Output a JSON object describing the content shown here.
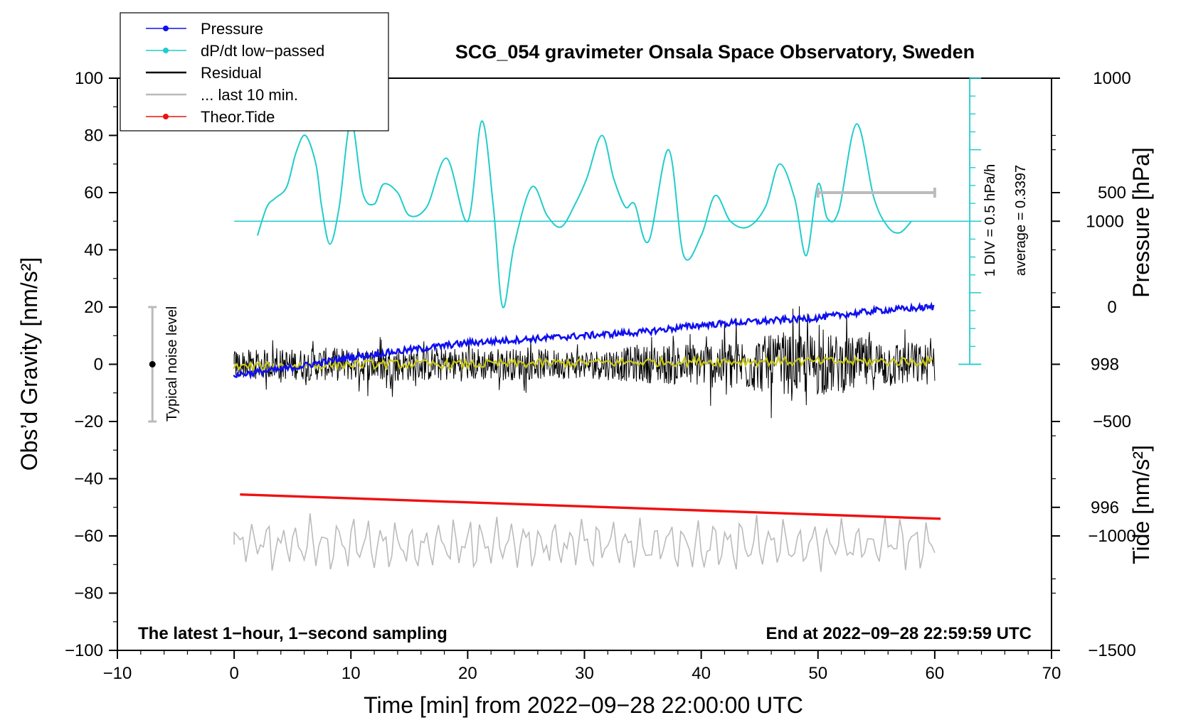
{
  "chart_data": {
    "type": "line",
    "title": "SCG_054 gravimeter Onsala Space Observatory, Sweden",
    "xlabel": "Time [min] from 2022−09−28 22:00:00 UTC",
    "ylabel_left": "Obs’d Gravity [nm/s²]",
    "ylabel_pressure": "Pressure [hPa]",
    "ylabel_tide": "Tide [nm/s²]",
    "xlim": [
      -10,
      70
    ],
    "ylim": [
      -100,
      100
    ],
    "pressure_ylim": [
      994,
      1002
    ],
    "tide_ylim": [
      -1500,
      1000
    ],
    "x_ticks": [
      "−10",
      "0",
      "10",
      "20",
      "30",
      "40",
      "50",
      "60",
      "70"
    ],
    "y_ticks": [
      "−100",
      "−80",
      "−60",
      "−40",
      "−20",
      "0",
      "20",
      "40",
      "60",
      "80",
      "100"
    ],
    "pressure_ticks": [
      "996",
      "998",
      "1000"
    ],
    "tide_ticks": [
      "−1500",
      "−1000",
      "−500",
      "0",
      "500",
      "1000"
    ],
    "legend": {
      "position": "top-left",
      "entries": [
        {
          "label": "Pressure",
          "color": "#1010ee",
          "marker": "dot"
        },
        {
          "label": "dP/dt low−passed",
          "color": "#22cccc",
          "marker": "dot"
        },
        {
          "label": "Residual",
          "color": "#000000",
          "marker": "line"
        },
        {
          "label": "... last 10 min.",
          "color": "#bbbbbb",
          "marker": "line"
        },
        {
          "label": "Theor.Tide",
          "color": "#ee1111",
          "marker": "dot"
        }
      ]
    },
    "annotations": {
      "bottom_left": "The latest 1−hour, 1−second sampling",
      "bottom_right": "End at 2022−09−28 22:59:59 UTC",
      "noise_label": "Typical noise level",
      "div_label": "1 DIV = 0.5 hPa/h",
      "average_label": "average = 0.3397"
    },
    "noise_bar": {
      "x": -7,
      "y": 0,
      "ymin": -20,
      "ymax": 20
    },
    "last10_bar": {
      "x_start": 50,
      "x_end": 60,
      "tide_value": 500
    },
    "dpdt_baseline_g": 50,
    "series": [
      {
        "name": "Pressure",
        "axis": "pressure",
        "color": "#1010ee",
        "x": [
          0,
          5,
          10,
          15,
          20,
          25,
          30,
          35,
          40,
          45,
          50,
          55,
          60
        ],
        "y": [
          997.85,
          997.95,
          998.1,
          998.2,
          998.3,
          998.35,
          998.4,
          998.45,
          998.55,
          998.6,
          998.65,
          998.75,
          998.8
        ]
      },
      {
        "name": "dP/dt low-passed",
        "axis": "left",
        "color": "#22cccc",
        "x": [
          2,
          2.8,
          3.5,
          4.5,
          5.3,
          6.1,
          7,
          7.5,
          8.2,
          9,
          10,
          11,
          12,
          12.8,
          14,
          15,
          16.5,
          18.2,
          20,
          21.2,
          22.2,
          23,
          24,
          25.5,
          26.8,
          28,
          29.2,
          30.2,
          31.5,
          32.5,
          33.5,
          34.3,
          35.5,
          37.2,
          38.5,
          40,
          41.2,
          42.5,
          44,
          45.5,
          46.7,
          48,
          49,
          50,
          50.8,
          51.8,
          53.3,
          54.8,
          56,
          57,
          58
        ],
        "y": [
          45,
          55,
          58,
          62,
          74,
          80,
          70,
          55,
          42,
          55,
          85,
          60,
          56,
          63,
          60,
          52,
          55,
          72,
          50,
          85,
          55,
          20,
          42,
          62,
          52,
          48,
          56,
          65,
          80,
          65,
          55,
          56,
          43,
          75,
          38,
          45,
          59,
          50,
          48,
          55,
          70,
          58,
          38,
          63,
          51,
          54,
          84,
          58,
          48,
          46,
          50
        ]
      },
      {
        "name": "Residual",
        "axis": "left",
        "color": "#000000",
        "x": [
          0,
          10,
          20,
          30,
          40,
          45,
          50,
          55,
          60
        ],
        "amplitude": [
          5,
          6,
          6,
          5,
          8,
          10,
          11,
          9,
          7
        ]
      },
      {
        "name": "Residual smoothed",
        "axis": "left",
        "color": "#c8c815",
        "x": [
          0,
          10,
          20,
          30,
          40,
          50,
          60
        ],
        "y": [
          -1,
          0,
          0,
          0.5,
          1,
          1,
          1
        ]
      },
      {
        "name": "... last 10 min.",
        "axis": "left",
        "color": "#bbbbbb",
        "x": [
          0,
          60
        ],
        "y_center": -63,
        "amplitude": 10
      },
      {
        "name": "Theor.Tide",
        "axis": "left",
        "color": "#ee1111",
        "x": [
          0.5,
          60.5
        ],
        "y": [
          -45.5,
          -54
        ]
      }
    ]
  }
}
